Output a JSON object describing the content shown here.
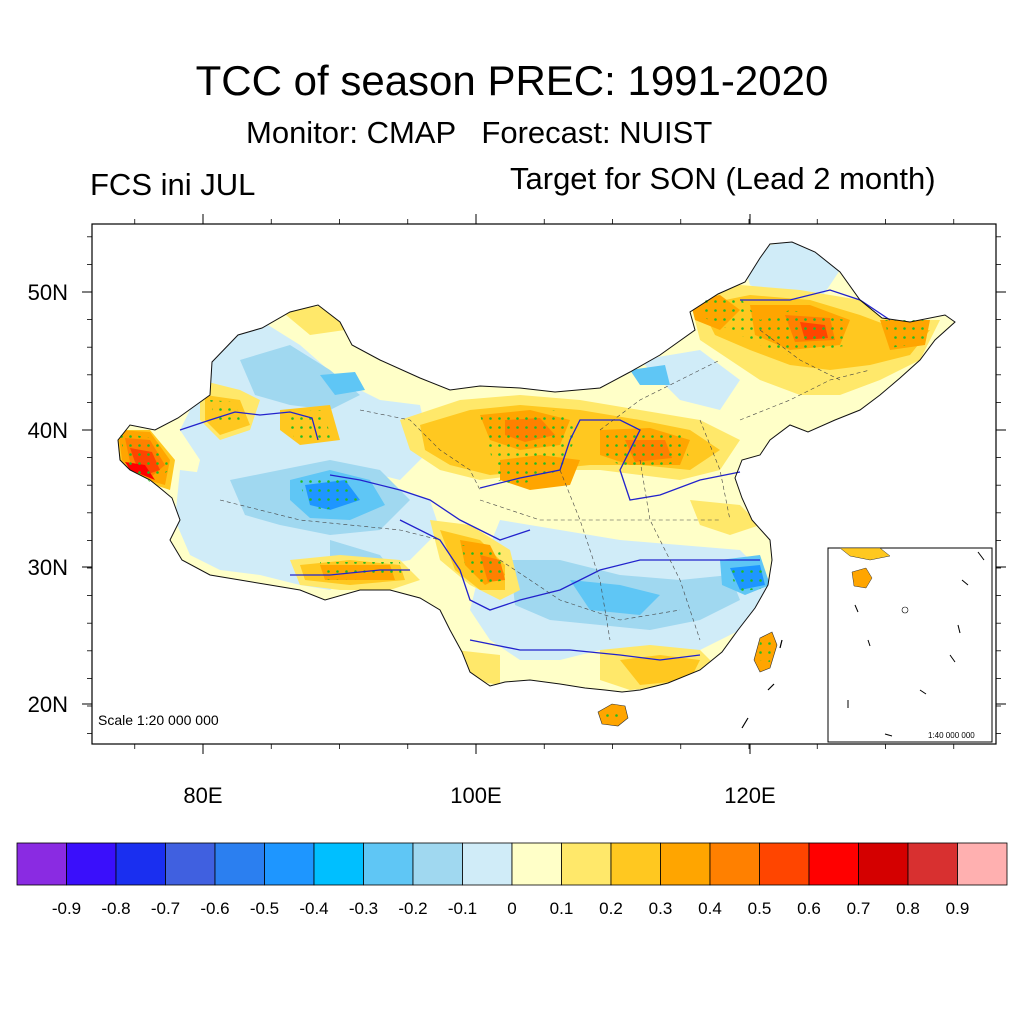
{
  "header": {
    "title": "TCC of season PREC: 1991-2020",
    "subtitle": "Monitor: CMAP   Forecast: NUIST",
    "left_label": "FCS ini JUL",
    "right_label": "Target for SON (Lead 2 month)"
  },
  "map": {
    "lat_labels": [
      "50N",
      "40N",
      "30N",
      "20N"
    ],
    "lon_labels": [
      "80E",
      "100E",
      "120E"
    ],
    "scale_label": "Scale 1:20 000 000",
    "inset_scale_label": "1:40 000 000"
  },
  "colorbar": {
    "labels": [
      "-0.9",
      "-0.8",
      "-0.7",
      "-0.6",
      "-0.5",
      "-0.4",
      "-0.3",
      "-0.2",
      "-0.1",
      "0",
      "0.1",
      "0.2",
      "0.3",
      "0.4",
      "0.5",
      "0.6",
      "0.7",
      "0.8",
      "0.9"
    ],
    "colors": [
      "#8a2be2",
      "#3a0ffb",
      "#1a2ff0",
      "#4060e0",
      "#2b7ff0",
      "#1e96ff",
      "#00bfff",
      "#5fc6f5",
      "#a0d8f0",
      "#d0ecf8",
      "#ffffc8",
      "#ffe86a",
      "#ffc820",
      "#ffa500",
      "#ff8000",
      "#ff4500",
      "#ff0000",
      "#d40000",
      "#d83030",
      "#ffb0b0"
    ]
  },
  "legend_colors": {
    "significance_dots": "#22bb22",
    "river": "#2222cc"
  }
}
